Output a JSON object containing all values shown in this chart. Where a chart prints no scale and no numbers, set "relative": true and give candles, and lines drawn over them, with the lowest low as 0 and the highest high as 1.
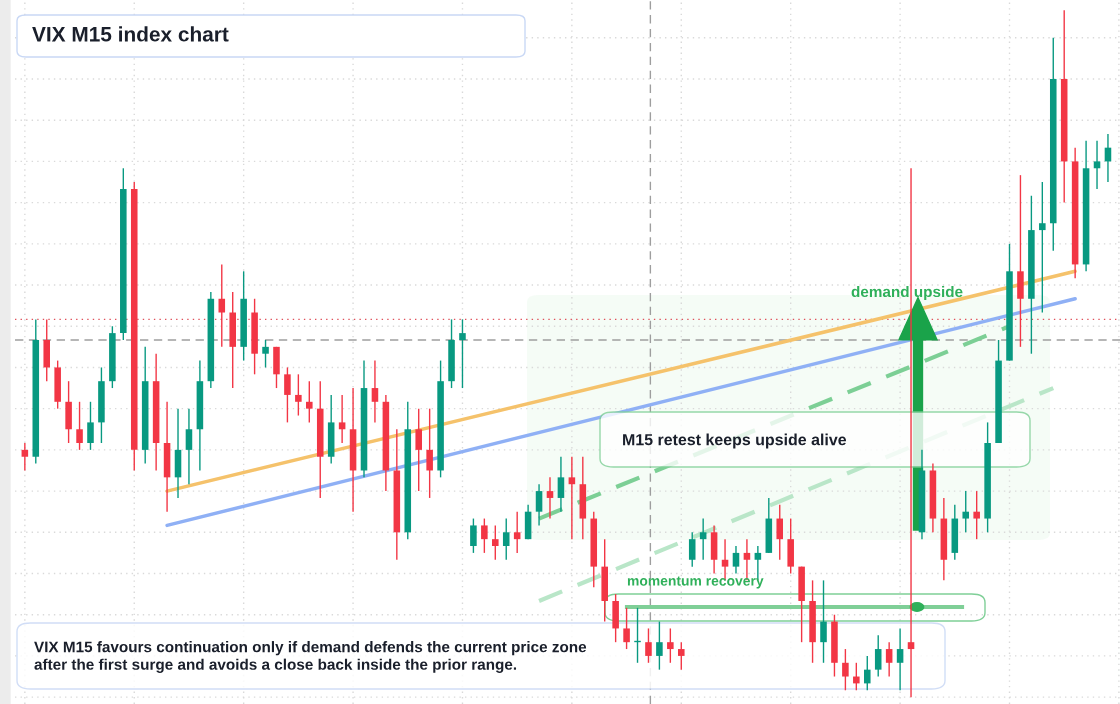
{
  "chart_data": {
    "type": "candlestick",
    "title": "VIX M15 index chart",
    "relative": true,
    "grid": true,
    "legend": false,
    "categories": [
      null,
      null,
      null,
      null,
      null,
      null,
      null,
      null,
      null,
      null,
      null,
      null,
      null,
      null,
      null,
      null,
      null,
      null,
      null,
      null,
      null,
      null,
      null,
      null,
      null,
      null,
      null,
      null,
      null,
      null,
      null,
      null,
      null,
      null,
      null,
      null,
      null,
      null,
      null,
      null,
      null,
      null,
      null,
      null,
      null,
      null,
      null,
      null,
      null,
      null,
      null,
      null,
      null,
      null,
      null,
      null,
      null,
      null,
      null,
      null,
      null,
      null,
      null,
      null,
      null,
      null,
      null,
      null,
      null,
      null,
      null,
      null,
      null,
      null,
      null,
      null,
      null,
      null,
      null,
      null,
      null,
      null,
      null,
      null,
      null,
      null,
      null,
      null,
      null,
      null,
      null,
      null,
      null,
      null,
      null,
      null,
      null,
      null,
      null,
      null
    ],
    "ohlc": [
      [
        0.36,
        0.37,
        0.33,
        0.35
      ],
      [
        0.35,
        0.55,
        0.34,
        0.52
      ],
      [
        0.52,
        0.55,
        0.46,
        0.48
      ],
      [
        0.48,
        0.49,
        0.42,
        0.43
      ],
      [
        0.43,
        0.46,
        0.37,
        0.39
      ],
      [
        0.39,
        0.43,
        0.36,
        0.37
      ],
      [
        0.37,
        0.43,
        0.36,
        0.4
      ],
      [
        0.4,
        0.48,
        0.37,
        0.46
      ],
      [
        0.46,
        0.54,
        0.45,
        0.53
      ],
      [
        0.53,
        0.77,
        0.52,
        0.74
      ],
      [
        0.74,
        0.75,
        0.33,
        0.36
      ],
      [
        0.36,
        0.51,
        0.34,
        0.46
      ],
      [
        0.46,
        0.5,
        0.33,
        0.37
      ],
      [
        0.37,
        0.43,
        0.27,
        0.32
      ],
      [
        0.32,
        0.42,
        0.29,
        0.36
      ],
      [
        0.36,
        0.42,
        0.31,
        0.39
      ],
      [
        0.39,
        0.49,
        0.33,
        0.46
      ],
      [
        0.46,
        0.59,
        0.45,
        0.58
      ],
      [
        0.58,
        0.63,
        0.51,
        0.56
      ],
      [
        0.56,
        0.59,
        0.45,
        0.51
      ],
      [
        0.51,
        0.62,
        0.49,
        0.58
      ],
      [
        0.56,
        0.58,
        0.47,
        0.5
      ],
      [
        0.5,
        0.52,
        0.48,
        0.51
      ],
      [
        0.51,
        0.51,
        0.45,
        0.47
      ],
      [
        0.47,
        0.48,
        0.4,
        0.44
      ],
      [
        0.44,
        0.47,
        0.41,
        0.43
      ],
      [
        0.43,
        0.46,
        0.4,
        0.42
      ],
      [
        0.42,
        0.46,
        0.29,
        0.35
      ],
      [
        0.35,
        0.44,
        0.34,
        0.4
      ],
      [
        0.4,
        0.44,
        0.37,
        0.39
      ],
      [
        0.39,
        0.45,
        0.27,
        0.33
      ],
      [
        0.33,
        0.49,
        0.32,
        0.45
      ],
      [
        0.45,
        0.49,
        0.4,
        0.43
      ],
      [
        0.43,
        0.44,
        0.3,
        0.33
      ],
      [
        0.33,
        0.39,
        0.2,
        0.24
      ],
      [
        0.24,
        0.43,
        0.23,
        0.39
      ],
      [
        0.39,
        0.42,
        0.3,
        0.36
      ],
      [
        0.36,
        0.42,
        0.29,
        0.33
      ],
      [
        0.33,
        0.49,
        0.32,
        0.46
      ],
      [
        0.46,
        0.55,
        0.45,
        0.52
      ],
      [
        0.52,
        0.55,
        0.45,
        0.53
      ],
      [
        0.22,
        0.26,
        0.21,
        0.25
      ],
      [
        0.25,
        0.26,
        0.21,
        0.23
      ],
      [
        0.23,
        0.25,
        0.2,
        0.22
      ],
      [
        0.22,
        0.26,
        0.2,
        0.24
      ],
      [
        0.24,
        0.27,
        0.21,
        0.23
      ],
      [
        0.23,
        0.28,
        0.23,
        0.27
      ],
      [
        0.27,
        0.31,
        0.25,
        0.3
      ],
      [
        0.3,
        0.32,
        0.26,
        0.29
      ],
      [
        0.29,
        0.35,
        0.27,
        0.32
      ],
      [
        0.32,
        0.35,
        0.23,
        0.31
      ],
      [
        0.31,
        0.35,
        0.23,
        0.26
      ],
      [
        0.26,
        0.27,
        0.16,
        0.19
      ],
      [
        0.19,
        0.23,
        0.11,
        0.14
      ],
      [
        0.14,
        0.15,
        0.08,
        0.1
      ],
      [
        0.1,
        0.13,
        0.07,
        0.08
      ],
      [
        0.08,
        0.13,
        0.05,
        0.08
      ],
      [
        0.08,
        0.1,
        0.05,
        0.06
      ],
      [
        0.06,
        0.11,
        0.04,
        0.08
      ],
      [
        0.08,
        0.1,
        0.05,
        0.07
      ],
      [
        0.07,
        0.08,
        0.04,
        0.06
      ],
      [
        0.2,
        0.24,
        0.19,
        0.23
      ],
      [
        0.23,
        0.26,
        0.2,
        0.24
      ],
      [
        0.24,
        0.25,
        0.18,
        0.2
      ],
      [
        0.2,
        0.23,
        0.17,
        0.19
      ],
      [
        0.19,
        0.22,
        0.18,
        0.21
      ],
      [
        0.21,
        0.23,
        0.17,
        0.2
      ],
      [
        0.2,
        0.22,
        0.17,
        0.21
      ],
      [
        0.21,
        0.29,
        0.21,
        0.26
      ],
      [
        0.26,
        0.28,
        0.2,
        0.23
      ],
      [
        0.23,
        0.26,
        0.18,
        0.19
      ],
      [
        0.19,
        0.19,
        0.08,
        0.14
      ],
      [
        0.14,
        0.17,
        0.05,
        0.08
      ],
      [
        0.08,
        0.17,
        0.05,
        0.11
      ],
      [
        0.11,
        0.12,
        0.03,
        0.05
      ],
      [
        0.05,
        0.07,
        0.01,
        0.03
      ],
      [
        0.03,
        0.05,
        0.01,
        0.02
      ],
      [
        0.02,
        0.06,
        0.01,
        0.04
      ],
      [
        0.04,
        0.09,
        0.03,
        0.07
      ],
      [
        0.07,
        0.08,
        0.03,
        0.05
      ],
      [
        0.05,
        0.1,
        0.01,
        0.07
      ],
      [
        0.08,
        0.77,
        0.0,
        0.07
      ],
      [
        0.24,
        0.36,
        0.23,
        0.33
      ],
      [
        0.33,
        0.34,
        0.24,
        0.26
      ],
      [
        0.26,
        0.29,
        0.17,
        0.2
      ],
      [
        0.21,
        0.28,
        0.2,
        0.26
      ],
      [
        0.26,
        0.3,
        0.24,
        0.27
      ],
      [
        0.27,
        0.3,
        0.23,
        0.26
      ],
      [
        0.26,
        0.4,
        0.24,
        0.37
      ],
      [
        0.37,
        0.52,
        0.37,
        0.49
      ],
      [
        0.49,
        0.66,
        0.49,
        0.62
      ],
      [
        0.62,
        0.76,
        0.51,
        0.58
      ],
      [
        0.58,
        0.73,
        0.5,
        0.68
      ],
      [
        0.68,
        0.75,
        0.56,
        0.69
      ],
      [
        0.69,
        0.96,
        0.65,
        0.9
      ],
      [
        0.9,
        1.0,
        0.72,
        0.78
      ],
      [
        0.78,
        0.8,
        0.61,
        0.63
      ],
      [
        0.63,
        0.81,
        0.62,
        0.77
      ],
      [
        0.77,
        0.81,
        0.74,
        0.78
      ],
      [
        0.78,
        0.82,
        0.75,
        0.8
      ]
    ],
    "colors": [
      "#f23645",
      "#089981",
      "#f23645",
      "#f23645",
      "#f23645",
      "#f23645",
      "#089981",
      "#089981",
      "#089981",
      "#089981",
      "#f23645",
      "#089981",
      "#f23645",
      "#f23645",
      "#089981",
      "#089981",
      "#089981",
      "#089981",
      "#f23645",
      "#f23645",
      "#089981",
      "#f23645",
      "#089981",
      "#f23645",
      "#f23645",
      "#f23645",
      "#f23645",
      "#f23645",
      "#089981",
      "#f23645",
      "#f23645",
      "#089981",
      "#f23645",
      "#f23645",
      "#f23645",
      "#089981",
      "#f23645",
      "#f23645",
      "#089981",
      "#089981",
      "#089981",
      "#089981",
      "#f23645",
      "#f23645",
      "#089981",
      "#f23645",
      "#089981",
      "#089981",
      "#f23645",
      "#089981",
      "#f23645",
      "#f23645",
      "#f23645",
      "#f23645",
      "#f23645",
      "#f23645",
      "#089981",
      "#f23645",
      "#089981",
      "#f23645",
      "#f23645",
      "#089981",
      "#089981",
      "#f23645",
      "#f23645",
      "#089981",
      "#f23645",
      "#089981",
      "#089981",
      "#f23645",
      "#f23645",
      "#f23645",
      "#f23645",
      "#089981",
      "#f23645",
      "#f23645",
      "#f23645",
      "#089981",
      "#089981",
      "#f23645",
      "#089981",
      "#f23645",
      "#089981",
      "#f23645",
      "#f23645",
      "#089981",
      "#089981",
      "#f23645",
      "#089981",
      "#089981",
      "#089981",
      "#f23645",
      "#089981",
      "#089981",
      "#089981",
      "#f23645",
      "#f23645",
      "#089981",
      "#089981",
      "#089981"
    ],
    "series": [
      {
        "type": "line",
        "color": "#f5c26b",
        "line_style": "solid",
        "values": [
          null,
          null,
          null,
          null,
          null,
          null,
          null,
          null,
          null,
          null,
          null,
          null,
          null,
          0.3,
          null,
          null,
          null,
          null,
          null,
          null,
          null,
          null,
          null,
          null,
          null,
          null,
          null,
          null,
          null,
          null,
          null,
          null,
          null,
          null,
          null,
          null,
          null,
          null,
          null,
          null,
          null,
          null,
          null,
          null,
          null,
          null,
          null,
          null,
          null,
          null,
          null,
          null,
          null,
          null,
          null,
          null,
          null,
          null,
          null,
          null,
          null,
          null,
          null,
          null,
          null,
          null,
          null,
          null,
          null,
          null,
          null,
          null,
          null,
          null,
          null,
          null,
          null,
          null,
          null,
          null,
          null,
          null,
          null,
          null,
          null,
          null,
          null,
          null,
          null,
          null,
          null,
          null,
          null,
          null,
          null,
          null,
          0.62,
          null,
          null,
          null
        ]
      },
      {
        "type": "line",
        "color": "#8fb0f5",
        "line_style": "solid",
        "values": [
          null,
          null,
          null,
          null,
          null,
          null,
          null,
          null,
          null,
          null,
          null,
          null,
          null,
          0.25,
          null,
          null,
          null,
          null,
          null,
          null,
          null,
          null,
          null,
          null,
          null,
          null,
          null,
          null,
          null,
          null,
          null,
          null,
          null,
          null,
          null,
          null,
          null,
          null,
          null,
          null,
          null,
          null,
          null,
          null,
          null,
          null,
          null,
          null,
          null,
          null,
          null,
          null,
          null,
          null,
          null,
          null,
          null,
          null,
          null,
          null,
          null,
          null,
          null,
          null,
          null,
          null,
          null,
          null,
          null,
          null,
          null,
          null,
          null,
          null,
          null,
          null,
          null,
          null,
          null,
          null,
          null,
          null,
          null,
          null,
          null,
          null,
          null,
          null,
          null,
          null,
          null,
          null,
          null,
          null,
          null,
          null,
          0.58,
          null,
          null,
          null
        ]
      },
      {
        "type": "line",
        "color": "#7ccf95",
        "line_style": "dashed",
        "values": [
          null,
          null,
          null,
          null,
          null,
          null,
          null,
          null,
          null,
          null,
          null,
          null,
          null,
          null,
          null,
          null,
          null,
          null,
          null,
          null,
          null,
          null,
          null,
          null,
          null,
          null,
          null,
          null,
          null,
          null,
          null,
          null,
          null,
          null,
          null,
          null,
          null,
          null,
          null,
          null,
          null,
          null,
          null,
          null,
          null,
          null,
          null,
          0.26,
          null,
          null,
          null,
          null,
          null,
          null,
          null,
          null,
          null,
          null,
          null,
          null,
          null,
          null,
          null,
          null,
          null,
          null,
          null,
          null,
          null,
          null,
          null,
          null,
          null,
          null,
          null,
          null,
          null,
          null,
          null,
          null,
          null,
          null,
          null,
          null,
          null,
          null,
          null,
          null,
          null,
          null,
          0.54,
          null,
          null,
          null,
          null,
          null,
          null,
          null,
          null,
          null
        ]
      },
      {
        "type": "line",
        "color": "#b9e6c8",
        "line_style": "dashed",
        "values": [
          null,
          null,
          null,
          null,
          null,
          null,
          null,
          null,
          null,
          null,
          null,
          null,
          null,
          null,
          null,
          null,
          null,
          null,
          null,
          null,
          null,
          null,
          null,
          null,
          null,
          null,
          null,
          null,
          null,
          null,
          null,
          null,
          null,
          null,
          null,
          null,
          null,
          null,
          null,
          null,
          null,
          null,
          null,
          null,
          null,
          null,
          null,
          0.14,
          null,
          null,
          null,
          null,
          null,
          null,
          null,
          null,
          null,
          null,
          null,
          null,
          null,
          null,
          null,
          null,
          null,
          null,
          null,
          null,
          null,
          null,
          null,
          null,
          null,
          null,
          null,
          null,
          null,
          null,
          null,
          null,
          null,
          null,
          null,
          null,
          null,
          null,
          null,
          null,
          null,
          null,
          null,
          null,
          null,
          null,
          0.45,
          null,
          null,
          null,
          null,
          null
        ]
      }
    ],
    "ref_lines": [
      {
        "axis": "y",
        "value": 0.55,
        "color": "#e0505a",
        "line_style": "dotted"
      },
      {
        "axis": "y",
        "value": 0.52,
        "color": "#9e9e9e",
        "line_style": "dashed"
      }
    ],
    "annotations": [
      "demand upside",
      "M15 retest keeps upside alive",
      "momentum recovery",
      "VIX M15 favours continuation only if demand defends the current price zone after the first surge and avoids a close back inside the prior range."
    ]
  }
}
